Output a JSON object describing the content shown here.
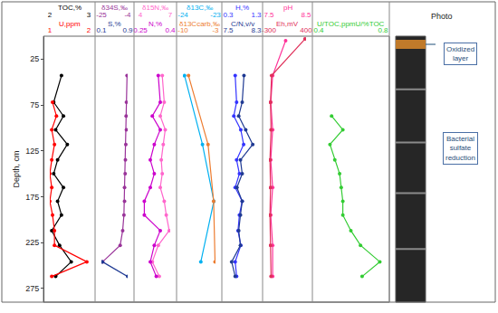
{
  "chart_data": {
    "type": "line",
    "marker": "circle",
    "y_label": "Depth, cm",
    "ylim": [
      0,
      290
    ],
    "yticks": [
      25,
      75,
      125,
      175,
      225,
      275
    ],
    "tracks": [
      {
        "series": [
          {
            "name": "TOC,%",
            "color": "#000000",
            "xlim": [
              2,
              3
            ],
            "xticks": [
              2,
              3
            ],
            "y": [
              43,
              72,
              87,
              102,
              118,
              135,
              150,
              165,
              180,
              195,
              212,
              228,
              246,
              262
            ],
            "values": [
              2.3,
              2.1,
              2.35,
              2.15,
              2.45,
              2.2,
              2.1,
              2.35,
              2.2,
              2.3,
              2.05,
              2.25,
              2.55,
              2.15
            ]
          },
          {
            "name": "U,ppm",
            "color": "#ff0000",
            "xlim": [
              1,
              2
            ],
            "xticks": [
              1,
              2
            ],
            "y": [
              72,
              87,
              102,
              118,
              135,
              150,
              165,
              180,
              195,
              212,
              228,
              246,
              262
            ],
            "values": [
              1.07,
              1.17,
              1.05,
              1.12,
              1.05,
              1.0,
              1.05,
              1.0,
              1.07,
              1.12,
              1.12,
              1.95,
              1.05
            ]
          }
        ]
      },
      {
        "series": [
          {
            "name": "δ34S,‰",
            "color": "#993399",
            "xlim": [
              -25,
              -4
            ],
            "xticks": [
              -25,
              -4
            ],
            "y": [
              43,
              72,
              87,
              102,
              118,
              135,
              150,
              165,
              180,
              195,
              212,
              228,
              246
            ],
            "values": [
              -4.5,
              -5,
              -5.2,
              -5,
              -5.5,
              -5.8,
              -6,
              -6.5,
              -6.5,
              -7,
              -8,
              -10,
              -24
            ]
          },
          {
            "name": "S,%",
            "color": "#1f3a93",
            "xlim": [
              0.1,
              0.9
            ],
            "xticks": [
              0.1,
              0.9
            ],
            "y": [
              246,
              262
            ],
            "values": [
              0.13,
              0.9
            ]
          }
        ]
      },
      {
        "series": [
          {
            "name": "δ15N,‰",
            "color": "#ff66cc",
            "xlim": [
              4,
              7
            ],
            "xticks": [
              4,
              7
            ],
            "y": [
              43,
              72,
              87,
              102,
              118,
              135,
              150,
              165,
              180,
              195,
              212,
              228,
              246,
              262
            ],
            "values": [
              6.2,
              6.4,
              6.0,
              6.5,
              6.3,
              6.1,
              6.2,
              6.0,
              6.4,
              6.6,
              6.9,
              5.8,
              5.2,
              5.9
            ]
          },
          {
            "name": "N,%",
            "color": "#cc00cc",
            "xlim": [
              0.25,
              0.4
            ],
            "xticks": [
              0.25,
              0.4
            ],
            "y": [
              43,
              72,
              87,
              102,
              118,
              135,
              150,
              165,
              180,
              195,
              212,
              228,
              246,
              262
            ],
            "values": [
              0.34,
              0.35,
              0.31,
              0.35,
              0.32,
              0.3,
              0.32,
              0.3,
              0.27,
              0.27,
              0.35,
              0.32,
              0.3,
              0.33
            ]
          }
        ]
      },
      {
        "series": [
          {
            "name": "δ13C,‰",
            "color": "#00b0f0",
            "xlim": [
              -24,
              -23
            ],
            "xticks": [
              -24,
              -23
            ],
            "y": [
              43,
              118,
              180,
              246
            ],
            "values": [
              -23.95,
              -23.4,
              -23.05,
              -23.45
            ]
          },
          {
            "name": "δ13Ccarb,‰",
            "color": "#ed7d31",
            "xlim": [
              -10,
              -3
            ],
            "xticks": [
              -10,
              -3
            ],
            "y": [
              43,
              118,
              180,
              246
            ],
            "values": [
              -8.8,
              -4.6,
              -3.4,
              -3.1
            ]
          }
        ]
      },
      {
        "series": [
          {
            "name": "H,%",
            "color": "#3333ff",
            "xlim": [
              0.3,
              1.3
            ],
            "xticks": [
              0.3,
              1.3
            ],
            "y": [
              43,
              72,
              87,
              102,
              118,
              135,
              150,
              165,
              180,
              195,
              212,
              228,
              246,
              262
            ],
            "values": [
              0.55,
              0.6,
              0.5,
              0.75,
              0.85,
              0.6,
              0.7,
              0.55,
              0.8,
              0.7,
              0.65,
              0.75,
              0.55,
              0.6
            ]
          },
          {
            "name": "C/N,v/v",
            "color": "#1f3a93",
            "xlim": [
              7.5,
              8.3
            ],
            "xticks": [
              7.5,
              8.3
            ],
            "y": [
              43,
              72,
              87,
              102,
              118,
              135,
              150,
              165,
              180,
              195,
              212,
              228,
              246,
              262
            ],
            "values": [
              7.95,
              7.9,
              7.8,
              8.0,
              8.2,
              7.85,
              7.9,
              7.75,
              7.9,
              7.85,
              7.8,
              7.85,
              7.6,
              7.7
            ]
          }
        ]
      },
      {
        "series": [
          {
            "name": "pH",
            "color": "#ff3399",
            "xlim": [
              7.5,
              8.5
            ],
            "xticks": [
              7.5,
              8.5
            ],
            "y": [
              5,
              43,
              72,
              102,
              135,
              165,
              195,
              228,
              262
            ],
            "values": [
              7.95,
              7.6,
              7.55,
              7.6,
              7.55,
              7.6,
              7.55,
              7.6,
              7.6
            ]
          },
          {
            "name": "Eh,mV",
            "color": "#e0305a",
            "xlim": [
              -300,
              400
            ],
            "xticks": [
              -300,
              400
            ],
            "y": [
              3,
              43,
              72,
              102,
              135,
              165,
              195,
              228,
              262
            ],
            "values": [
              380,
              -250,
              -270,
              -260,
              -280,
              -270,
              -280,
              -270,
              -260
            ]
          }
        ]
      },
      {
        "series": [
          {
            "name": "U/TOC,ppmU/%TOC",
            "color": "#33cc33",
            "xlim": [
              0.4,
              0.8
            ],
            "xticks": [
              0.4,
              0.8
            ],
            "y": [
              87,
              102,
              118,
              135,
              150,
              165,
              180,
              195,
              212,
              228,
              246,
              262
            ],
            "values": [
              0.48,
              0.55,
              0.47,
              0.5,
              0.53,
              0.54,
              0.55,
              0.55,
              0.6,
              0.66,
              0.78,
              0.67
            ]
          }
        ]
      }
    ],
    "photo": {
      "title": "Photo",
      "labels": [
        [
          "Oxidized",
          "layer"
        ],
        [
          "Bacterial",
          "sulfate",
          "reduction"
        ]
      ]
    }
  }
}
